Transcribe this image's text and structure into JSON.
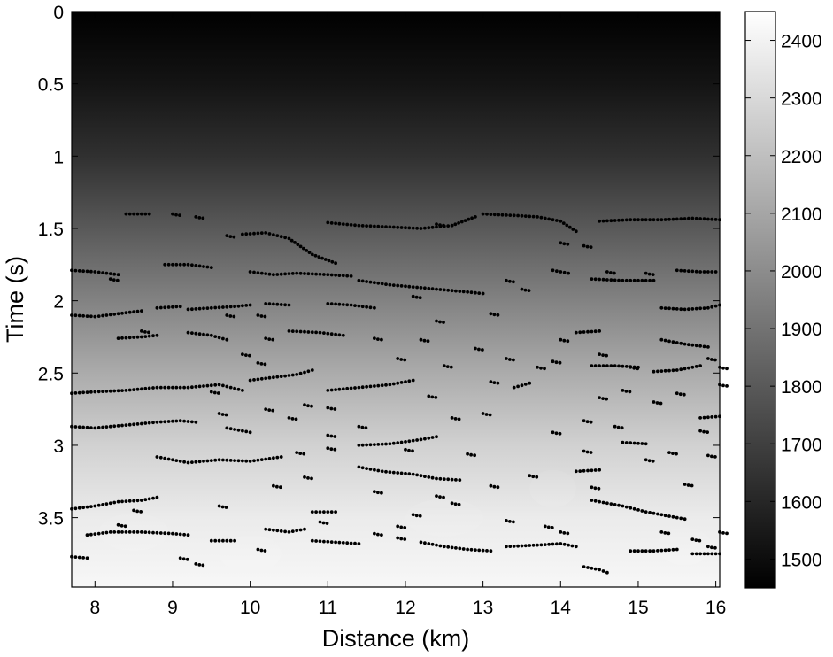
{
  "chart_data": {
    "type": "heatmap",
    "title": "",
    "xlabel": "Distance (km)",
    "ylabel": "Time (s)",
    "xlim": [
      7.7,
      16.05
    ],
    "ylim": [
      0,
      3.98
    ],
    "y_reversed": true,
    "x_ticks": [
      "8",
      "9",
      "10",
      "11",
      "12",
      "13",
      "14",
      "15",
      "16"
    ],
    "y_ticks": [
      "0",
      "0.5",
      "1",
      "1.5",
      "2",
      "2.5",
      "3",
      "3.5"
    ],
    "colorbar": {
      "colormap": "gray",
      "range": [
        1450,
        2450
      ],
      "ticks": [
        "1500",
        "1600",
        "1700",
        "1800",
        "1900",
        "2000",
        "2100",
        "2200",
        "2300",
        "2400"
      ]
    },
    "velocity_profile": [
      {
        "time": 0,
        "value": 1450
      },
      {
        "time": 0.5,
        "value": 1530
      },
      {
        "time": 1.0,
        "value": 1640
      },
      {
        "time": 1.5,
        "value": 1800
      },
      {
        "time": 2.0,
        "value": 1960
      },
      {
        "time": 2.5,
        "value": 2120
      },
      {
        "time": 3.0,
        "value": 2270
      },
      {
        "time": 3.5,
        "value": 2370
      },
      {
        "time": 3.98,
        "value": 2420
      }
    ],
    "picked_horizons": [
      [
        [
          8.4,
          1.4
        ],
        [
          8.7,
          1.4
        ]
      ],
      [
        [
          9.9,
          1.54
        ],
        [
          10.2,
          1.53
        ],
        [
          10.5,
          1.57
        ],
        [
          10.8,
          1.68
        ],
        [
          11.1,
          1.74
        ]
      ],
      [
        [
          11.0,
          1.46
        ],
        [
          11.4,
          1.48
        ],
        [
          11.8,
          1.49
        ],
        [
          12.2,
          1.5
        ],
        [
          12.6,
          1.48
        ],
        [
          12.9,
          1.42
        ]
      ],
      [
        [
          13.0,
          1.4
        ],
        [
          13.4,
          1.41
        ],
        [
          13.7,
          1.42
        ],
        [
          14.0,
          1.45
        ],
        [
          14.2,
          1.52
        ]
      ],
      [
        [
          14.5,
          1.45
        ],
        [
          14.9,
          1.44
        ],
        [
          15.3,
          1.44
        ],
        [
          15.7,
          1.43
        ],
        [
          16.05,
          1.44
        ]
      ],
      [
        [
          7.7,
          1.79
        ],
        [
          8.0,
          1.8
        ],
        [
          8.3,
          1.82
        ]
      ],
      [
        [
          8.9,
          1.75
        ],
        [
          9.2,
          1.75
        ],
        [
          9.5,
          1.77
        ]
      ],
      [
        [
          10.0,
          1.8
        ],
        [
          10.3,
          1.82
        ],
        [
          10.6,
          1.81
        ],
        [
          11.0,
          1.82
        ],
        [
          11.3,
          1.83
        ]
      ],
      [
        [
          11.4,
          1.86
        ],
        [
          11.8,
          1.89
        ],
        [
          12.2,
          1.91
        ],
        [
          12.6,
          1.93
        ],
        [
          13.0,
          1.95
        ]
      ],
      [
        [
          13.9,
          1.79
        ],
        [
          14.1,
          1.81
        ]
      ],
      [
        [
          14.4,
          1.85
        ],
        [
          14.8,
          1.86
        ],
        [
          15.2,
          1.86
        ]
      ],
      [
        [
          15.5,
          1.79
        ],
        [
          15.8,
          1.8
        ],
        [
          16.0,
          1.8
        ]
      ],
      [
        [
          7.7,
          2.1
        ],
        [
          8.0,
          2.11
        ],
        [
          8.3,
          2.09
        ],
        [
          8.6,
          2.07
        ]
      ],
      [
        [
          8.8,
          2.05
        ],
        [
          9.1,
          2.04
        ]
      ],
      [
        [
          9.2,
          2.06
        ],
        [
          9.5,
          2.05
        ],
        [
          9.8,
          2.04
        ],
        [
          10.0,
          2.03
        ]
      ],
      [
        [
          10.2,
          2.02
        ],
        [
          10.5,
          2.03
        ]
      ],
      [
        [
          11.0,
          2.02
        ],
        [
          11.3,
          2.03
        ],
        [
          11.6,
          2.05
        ]
      ],
      [
        [
          15.3,
          2.05
        ],
        [
          15.6,
          2.06
        ],
        [
          15.9,
          2.05
        ],
        [
          16.05,
          2.03
        ]
      ],
      [
        [
          8.3,
          2.26
        ],
        [
          8.6,
          2.25
        ],
        [
          8.8,
          2.24
        ]
      ],
      [
        [
          9.2,
          2.22
        ],
        [
          9.5,
          2.24
        ],
        [
          9.7,
          2.27
        ]
      ],
      [
        [
          10.5,
          2.21
        ],
        [
          10.9,
          2.22
        ],
        [
          11.2,
          2.24
        ]
      ],
      [
        [
          14.2,
          2.22
        ],
        [
          14.5,
          2.21
        ]
      ],
      [
        [
          15.3,
          2.27
        ],
        [
          15.6,
          2.3
        ],
        [
          15.9,
          2.32
        ]
      ],
      [
        [
          7.7,
          2.64
        ],
        [
          8.0,
          2.63
        ],
        [
          8.4,
          2.62
        ],
        [
          8.8,
          2.6
        ],
        [
          9.2,
          2.6
        ],
        [
          9.6,
          2.58
        ],
        [
          9.9,
          2.62
        ]
      ],
      [
        [
          10.0,
          2.55
        ],
        [
          10.3,
          2.53
        ],
        [
          10.6,
          2.51
        ],
        [
          10.8,
          2.48
        ]
      ],
      [
        [
          11.0,
          2.62
        ],
        [
          11.4,
          2.6
        ],
        [
          11.8,
          2.58
        ],
        [
          12.1,
          2.55
        ]
      ],
      [
        [
          13.4,
          2.6
        ],
        [
          13.6,
          2.57
        ]
      ],
      [
        [
          14.4,
          2.45
        ],
        [
          14.7,
          2.45
        ],
        [
          15.0,
          2.46
        ]
      ],
      [
        [
          15.2,
          2.49
        ],
        [
          15.5,
          2.48
        ],
        [
          15.8,
          2.45
        ]
      ],
      [
        [
          7.7,
          2.87
        ],
        [
          8.0,
          2.88
        ],
        [
          8.4,
          2.86
        ],
        [
          8.8,
          2.84
        ],
        [
          9.1,
          2.83
        ],
        [
          9.3,
          2.84
        ]
      ],
      [
        [
          9.7,
          2.88
        ],
        [
          10.0,
          2.91
        ]
      ],
      [
        [
          11.4,
          3.0
        ],
        [
          11.8,
          2.99
        ],
        [
          12.2,
          2.96
        ],
        [
          12.4,
          2.94
        ]
      ],
      [
        [
          14.8,
          2.98
        ],
        [
          15.1,
          2.99
        ]
      ],
      [
        [
          15.8,
          2.81
        ],
        [
          16.05,
          2.8
        ]
      ],
      [
        [
          8.8,
          3.08
        ],
        [
          9.2,
          3.12
        ],
        [
          9.6,
          3.1
        ],
        [
          10.0,
          3.11
        ],
        [
          10.4,
          3.08
        ]
      ],
      [
        [
          11.4,
          3.15
        ],
        [
          11.7,
          3.18
        ],
        [
          12.1,
          3.2
        ],
        [
          12.4,
          3.23
        ],
        [
          12.7,
          3.24
        ]
      ],
      [
        [
          14.2,
          3.18
        ],
        [
          14.5,
          3.17
        ]
      ],
      [
        [
          7.7,
          3.44
        ],
        [
          8.0,
          3.42
        ],
        [
          8.3,
          3.39
        ],
        [
          8.6,
          3.38
        ],
        [
          8.8,
          3.36
        ]
      ],
      [
        [
          10.8,
          3.46
        ],
        [
          11.1,
          3.46
        ]
      ],
      [
        [
          14.4,
          3.38
        ],
        [
          14.8,
          3.42
        ],
        [
          15.1,
          3.46
        ],
        [
          15.4,
          3.49
        ],
        [
          15.6,
          3.51
        ]
      ],
      [
        [
          7.9,
          3.62
        ],
        [
          8.2,
          3.6
        ],
        [
          8.6,
          3.6
        ],
        [
          9.0,
          3.61
        ],
        [
          9.2,
          3.62
        ]
      ],
      [
        [
          9.5,
          3.66
        ],
        [
          9.8,
          3.66
        ]
      ],
      [
        [
          10.2,
          3.58
        ],
        [
          10.5,
          3.6
        ],
        [
          10.7,
          3.58
        ]
      ],
      [
        [
          10.8,
          3.66
        ],
        [
          11.1,
          3.67
        ],
        [
          11.4,
          3.68
        ]
      ],
      [
        [
          12.2,
          3.67
        ],
        [
          12.5,
          3.7
        ],
        [
          12.8,
          3.72
        ],
        [
          13.1,
          3.73
        ]
      ],
      [
        [
          13.3,
          3.7
        ],
        [
          13.7,
          3.69
        ],
        [
          14.0,
          3.68
        ],
        [
          14.2,
          3.7
        ]
      ],
      [
        [
          14.9,
          3.73
        ],
        [
          15.2,
          3.73
        ],
        [
          15.5,
          3.72
        ]
      ],
      [
        [
          15.7,
          3.75
        ],
        [
          16.05,
          3.75
        ]
      ],
      [
        [
          14.3,
          3.84
        ],
        [
          14.5,
          3.86
        ],
        [
          14.6,
          3.88
        ]
      ],
      [
        [
          7.7,
          3.77
        ],
        [
          7.9,
          3.78
        ]
      ]
    ],
    "scattered_picks": [
      [
        8.2,
        1.85
      ],
      [
        9.0,
        1.4
      ],
      [
        9.3,
        1.42
      ],
      [
        9.7,
        1.55
      ],
      [
        12.4,
        1.47
      ],
      [
        14.0,
        1.6
      ],
      [
        14.3,
        1.62
      ],
      [
        14.6,
        1.8
      ],
      [
        15.1,
        1.81
      ],
      [
        13.3,
        1.86
      ],
      [
        13.5,
        1.92
      ],
      [
        12.1,
        1.97
      ],
      [
        10.1,
        2.1
      ],
      [
        12.4,
        2.14
      ],
      [
        13.1,
        2.09
      ],
      [
        9.7,
        2.1
      ],
      [
        8.6,
        2.21
      ],
      [
        10.2,
        2.26
      ],
      [
        11.6,
        2.26
      ],
      [
        12.2,
        2.27
      ],
      [
        9.9,
        2.37
      ],
      [
        10.1,
        2.43
      ],
      [
        12.5,
        2.45
      ],
      [
        13.3,
        2.4
      ],
      [
        13.7,
        2.46
      ],
      [
        13.9,
        2.42
      ],
      [
        14.5,
        2.37
      ],
      [
        14.9,
        2.46
      ],
      [
        15.9,
        2.4
      ],
      [
        16.05,
        2.46
      ],
      [
        12.3,
        2.66
      ],
      [
        13.1,
        2.56
      ],
      [
        14.5,
        2.67
      ],
      [
        14.8,
        2.62
      ],
      [
        15.2,
        2.7
      ],
      [
        15.5,
        2.64
      ],
      [
        16.05,
        2.58
      ],
      [
        9.6,
        2.78
      ],
      [
        10.2,
        2.75
      ],
      [
        10.5,
        2.81
      ],
      [
        10.7,
        2.72
      ],
      [
        11.0,
        2.93
      ],
      [
        11.4,
        2.87
      ],
      [
        12.6,
        2.81
      ],
      [
        13.0,
        2.78
      ],
      [
        13.9,
        2.91
      ],
      [
        14.3,
        2.83
      ],
      [
        14.7,
        2.87
      ],
      [
        15.8,
        2.9
      ],
      [
        10.6,
        3.05
      ],
      [
        11.0,
        3.02
      ],
      [
        12.0,
        3.03
      ],
      [
        12.8,
        3.06
      ],
      [
        14.3,
        3.04
      ],
      [
        15.1,
        3.1
      ],
      [
        15.4,
        3.05
      ],
      [
        15.9,
        3.07
      ],
      [
        10.3,
        3.28
      ],
      [
        10.7,
        3.22
      ],
      [
        11.6,
        3.32
      ],
      [
        12.4,
        3.35
      ],
      [
        13.1,
        3.28
      ],
      [
        13.6,
        3.21
      ],
      [
        14.4,
        3.29
      ],
      [
        15.6,
        3.27
      ],
      [
        8.5,
        3.45
      ],
      [
        9.6,
        3.42
      ],
      [
        10.9,
        3.53
      ],
      [
        11.9,
        3.56
      ],
      [
        12.1,
        3.48
      ],
      [
        12.6,
        3.4
      ],
      [
        13.3,
        3.52
      ],
      [
        13.8,
        3.56
      ],
      [
        14.0,
        3.6
      ],
      [
        9.1,
        3.78
      ],
      [
        9.3,
        3.82
      ],
      [
        10.1,
        3.72
      ],
      [
        11.6,
        3.61
      ],
      [
        11.9,
        3.64
      ],
      [
        15.3,
        3.6
      ],
      [
        15.7,
        3.65
      ],
      [
        15.9,
        3.7
      ],
      [
        16.05,
        3.6
      ],
      [
        8.3,
        3.55
      ],
      [
        11.9,
        2.4
      ],
      [
        12.9,
        2.33
      ],
      [
        14.0,
        2.27
      ],
      [
        9.5,
        2.63
      ],
      [
        11.0,
        2.74
      ]
    ]
  }
}
